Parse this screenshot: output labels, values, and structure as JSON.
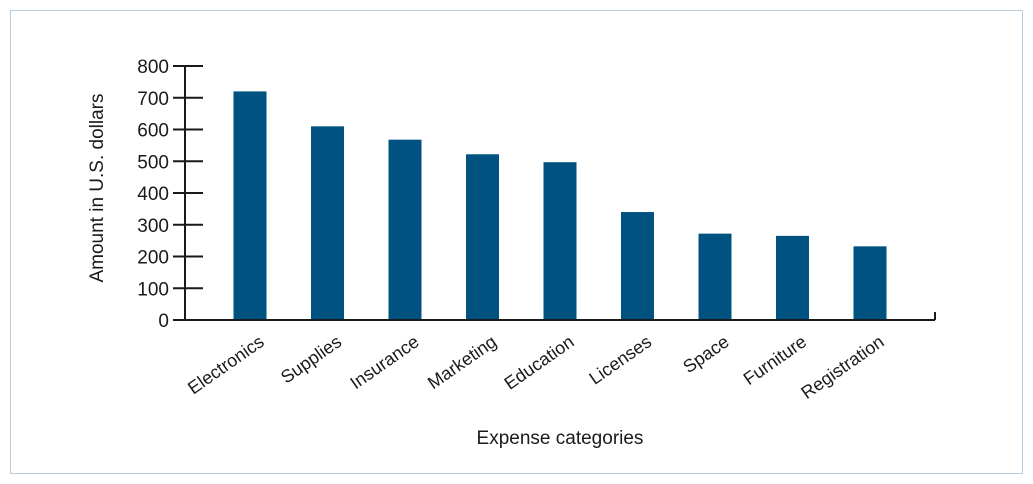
{
  "chart_data": {
    "type": "bar",
    "title": "",
    "xlabel": "Expense categories",
    "ylabel": "Amount in U.S. dollars",
    "categories": [
      "Electronics",
      "Supplies",
      "Insurance",
      "Marketing",
      "Education",
      "Licenses",
      "Space",
      "Furniture",
      "Registration"
    ],
    "values": [
      720,
      610,
      568,
      522,
      497,
      340,
      272,
      265,
      232
    ],
    "ylim": [
      0,
      800
    ],
    "yticks": [
      0,
      100,
      200,
      300,
      400,
      500,
      600,
      700,
      800
    ],
    "grid": false,
    "bar_color": "#005380"
  }
}
